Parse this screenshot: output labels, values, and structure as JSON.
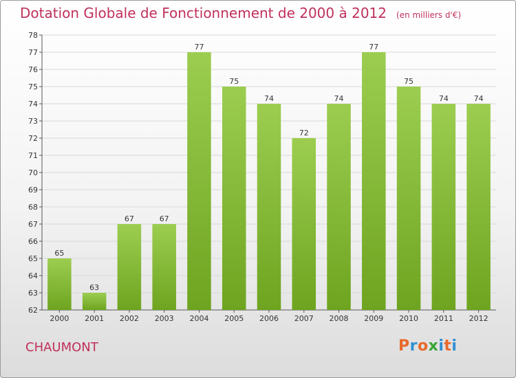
{
  "header": {
    "title": "Dotation Globale de Fonctionnement de 2000 à 2012",
    "unit_note": "(en milliers d'€)"
  },
  "footer": {
    "commune": "CHAUMONT",
    "logo_text": "Proxiti"
  },
  "colors": {
    "title": "#c0305a",
    "bar_light": "#9ccd50",
    "bar_dark": "#6ea420",
    "grid": "#d8d8d8",
    "logo": [
      "#e8692a",
      "#2f8fd0",
      "#e8692a",
      "#3aa635",
      "#2f8fd0",
      "#e8692a",
      "#2f8fd0"
    ]
  },
  "chart_data": {
    "type": "bar",
    "title": "Dotation Globale de Fonctionnement de 2000 à 2012",
    "subtitle": "(en milliers d'€)",
    "categories": [
      "2000",
      "2001",
      "2002",
      "2003",
      "2004",
      "2005",
      "2006",
      "2007",
      "2008",
      "2009",
      "2010",
      "2011",
      "2012"
    ],
    "values": [
      65,
      63,
      67,
      67,
      77,
      75,
      74,
      72,
      74,
      77,
      75,
      74,
      74
    ],
    "ylim": [
      62,
      78
    ],
    "yticks": [
      62,
      63,
      64,
      65,
      66,
      67,
      68,
      69,
      70,
      71,
      72,
      73,
      74,
      75,
      76,
      77,
      78
    ],
    "grid": true,
    "xlabel": "",
    "ylabel": ""
  }
}
